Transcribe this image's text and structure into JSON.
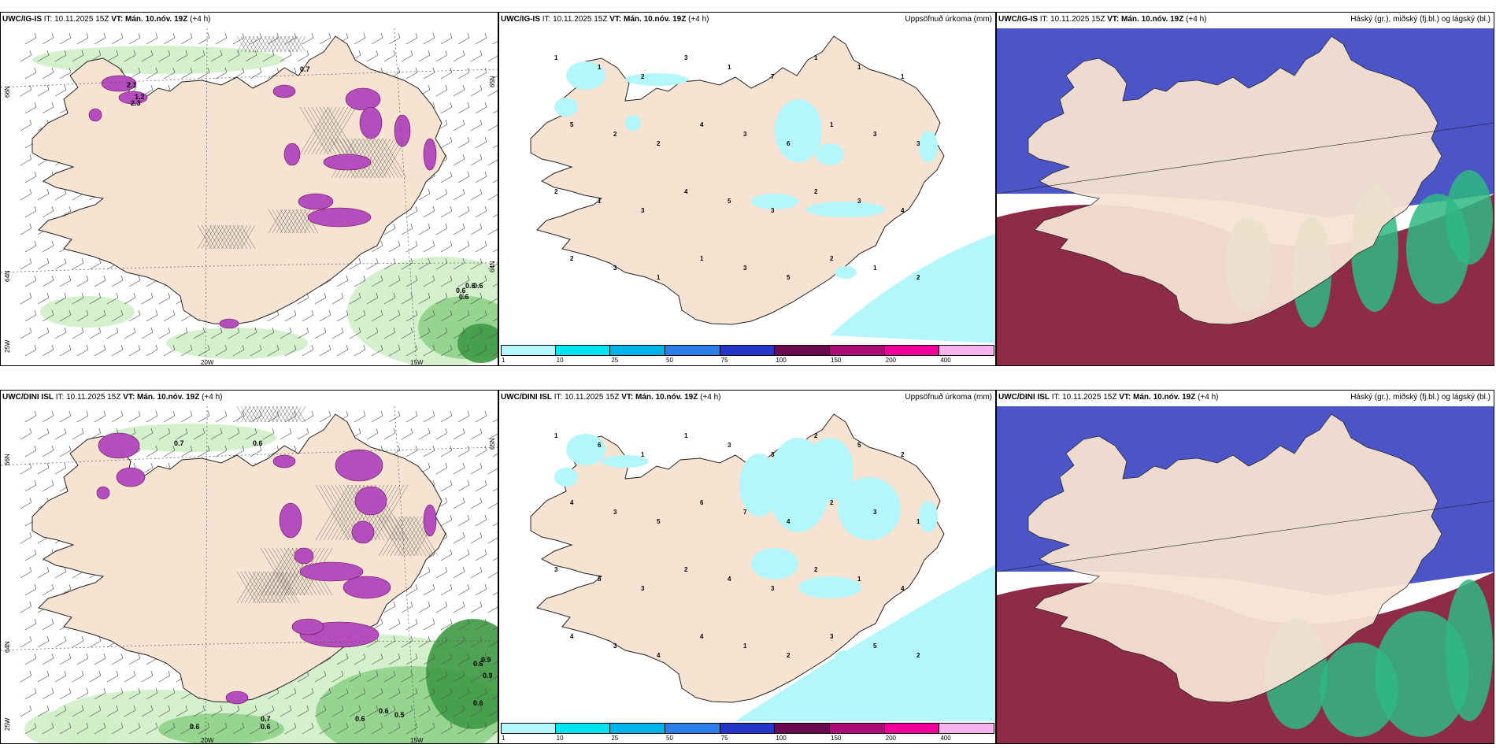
{
  "rows": [
    {
      "model": "UWC/IG-IS",
      "init_label": "IT:",
      "init_time": "10.11.2025 15Z",
      "valid_label": "VT:",
      "valid_time": "Mán. 10.nóv. 19Z",
      "lead": "(+4 h)",
      "precip_title": "Uppsöfnuð úrkoma (mm)",
      "cloud_title": "Háský (gr.), miðský (fj.bl.) og lágský (bl.)",
      "lat_labels": [
        "66N",
        "64N",
        "65N",
        "64N"
      ],
      "lon_labels": [
        "20W",
        "15W",
        "25W"
      ],
      "wind_values": [
        "0.6",
        "0.6",
        "0.6",
        "0.6",
        "0.7",
        "1.2",
        "2.1",
        "2.3"
      ],
      "precip_values": [
        "1",
        "1",
        "2",
        "3",
        "1",
        "7",
        "1",
        "1",
        "1",
        "5",
        "2",
        "2",
        "4",
        "3",
        "6",
        "1",
        "3",
        "3",
        "2",
        "1",
        "3",
        "4",
        "5",
        "3",
        "2",
        "3",
        "4",
        "2",
        "3",
        "1",
        "1",
        "3",
        "5",
        "2",
        "1",
        "2"
      ]
    },
    {
      "model": "UWC/DINI ISL",
      "init_label": "IT:",
      "init_time": "10.11.2025 15Z",
      "valid_label": "VT:",
      "valid_time": "Mán. 10.nóv. 19Z",
      "lead": "(+4 h)",
      "precip_title": "Uppsöfnuð úrkoma (mm)",
      "cloud_title": "Háský (gr.), miðský (fj.bl.) og lágský (bl.)",
      "lat_labels": [
        "66N",
        "65N",
        "64N"
      ],
      "lon_labels": [
        "20W",
        "15W",
        "25W"
      ],
      "wind_values": [
        "0.6",
        "0.6",
        "0.6",
        "0.7",
        "0.9",
        "0.9",
        "0.6",
        "0.6",
        "0.5",
        "0.7",
        "0.6",
        "0.6"
      ],
      "precip_values": [
        "1",
        "6",
        "1",
        "1",
        "3",
        "3",
        "2",
        "5",
        "2",
        "4",
        "3",
        "5",
        "6",
        "7",
        "4",
        "2",
        "3",
        "1",
        "3",
        "5",
        "3",
        "2",
        "4",
        "3",
        "2",
        "1",
        "4",
        "4",
        "3",
        "4",
        "4",
        "1",
        "2",
        "3",
        "5",
        "2"
      ]
    }
  ],
  "colorbar": {
    "ticks": [
      "1",
      "10",
      "25",
      "50",
      "75",
      "100",
      "150",
      "200",
      "400"
    ],
    "colors": [
      "#b3f6fb",
      "#00e6f0",
      "#00b4ea",
      "#2a7ee8",
      "#2436c8",
      "#6b0b4f",
      "#ab0d78",
      "#f00099",
      "#f9b4ef"
    ]
  },
  "colors": {
    "land": "#f6e3d2",
    "wind_light": "#cfeec6",
    "wind_mid": "#8fd28a",
    "wind_dark": "#3e9a44",
    "precip_cyan": "#b3f6fb",
    "purple": "#b44dbe",
    "high_cloud": "#4c55c8",
    "mid_cloud": "#8e2b48",
    "low_cloud": "#2fb884"
  }
}
